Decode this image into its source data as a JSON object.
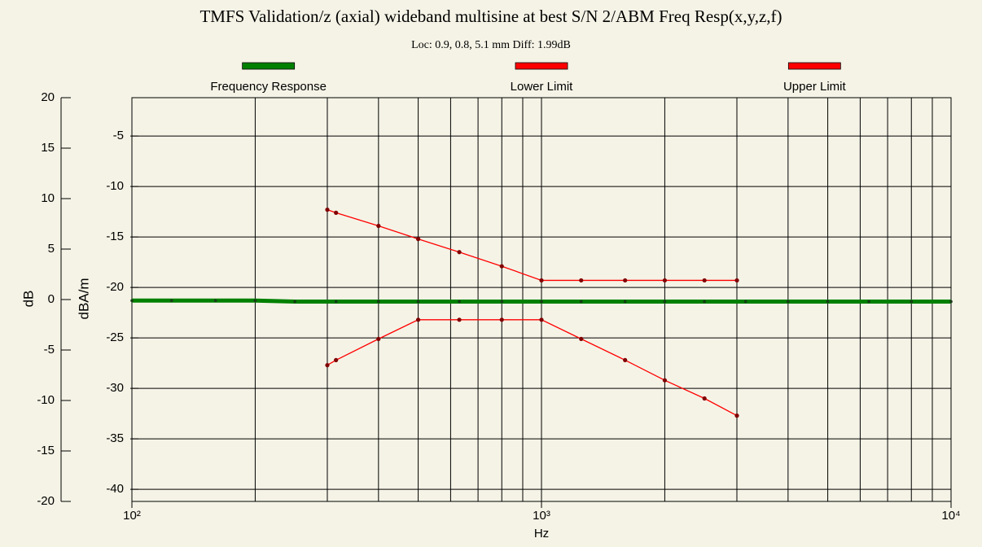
{
  "chart_data": {
    "type": "line",
    "title": "TMFS Validation/z (axial) wideband multisine at best S/N 2/ABM Freq Resp(x,y,z,f)",
    "subtitle": "Loc: 0.9, 0.8, 5.1 mm Diff: 1.99dB",
    "x_label": "Hz",
    "y_label": "dB",
    "y2_label": "dBA/m",
    "xscale": "log",
    "xlim": [
      100,
      10000
    ],
    "xticks": [
      {
        "value": 100,
        "label": "10²"
      },
      {
        "value": 1000,
        "label": "10³"
      },
      {
        "value": 10000,
        "label": "10⁴"
      }
    ],
    "xgrid": [
      200,
      300,
      400,
      500,
      600,
      700,
      800,
      900,
      1000,
      2000,
      3000,
      4000,
      5000,
      6000,
      7000,
      8000,
      9000
    ],
    "ylim": [
      -20,
      20
    ],
    "yticks": [
      20,
      15,
      10,
      5,
      0,
      -5,
      -10,
      -15,
      -20
    ],
    "y2lim": [
      -41.2,
      -1.2
    ],
    "y2ticks": [
      -5,
      -10,
      -15,
      -20,
      -25,
      -30,
      -35,
      -40
    ],
    "grid": true,
    "legend": "top",
    "series": [
      {
        "name": "Frequency Response",
        "color": "#008000",
        "x": [
          100,
          125,
          160,
          200,
          250,
          315,
          400,
          500,
          630,
          800,
          1000,
          1250,
          1600,
          2000,
          2500,
          3150,
          4000,
          5000,
          6300,
          8000,
          10000
        ],
        "values": [
          -0.1,
          -0.1,
          -0.1,
          -0.1,
          -0.2,
          -0.2,
          -0.2,
          -0.2,
          -0.2,
          -0.2,
          -0.2,
          -0.2,
          -0.2,
          -0.2,
          -0.2,
          -0.2,
          -0.2,
          -0.2,
          -0.2,
          -0.2,
          -0.2
        ]
      },
      {
        "name": "Lower Limit",
        "color": "#ff0000",
        "x": [
          300,
          315,
          400,
          500,
          630,
          800,
          1000,
          1250,
          1600,
          2000,
          2500,
          3000
        ],
        "values": [
          -6.5,
          -6.0,
          -3.9,
          -2.0,
          -2.0,
          -2.0,
          -2.0,
          -3.9,
          -6.0,
          -8.0,
          -9.8,
          -11.5
        ]
      },
      {
        "name": "Upper Limit",
        "color": "#ff0000",
        "x": [
          300,
          315,
          400,
          500,
          630,
          800,
          1000,
          1250,
          1600,
          2000,
          2500,
          3000
        ],
        "values": [
          8.9,
          8.6,
          7.3,
          6.0,
          4.7,
          3.3,
          1.9,
          1.9,
          1.9,
          1.9,
          1.9,
          1.9
        ]
      }
    ]
  }
}
